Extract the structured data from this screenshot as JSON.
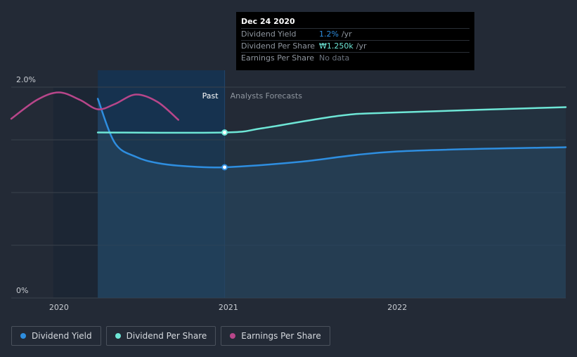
{
  "colors": {
    "background": "#232a36",
    "dividend_yield": "#2e8ee0",
    "dividend_per_share": "#6ee6d6",
    "earnings_per_share": "#b8468a",
    "past_region": "#16324f",
    "grid": "#3a414c",
    "axis_text": "#c9cdd3"
  },
  "region_labels": {
    "past": "Past",
    "forecast": "Analysts Forecasts"
  },
  "tooltip": {
    "date": "Dec 24 2020",
    "rows": [
      {
        "label": "Dividend Yield",
        "value": "1.2%",
        "unit": "/yr",
        "color": "#2e8ee0"
      },
      {
        "label": "Dividend Per Share",
        "value": "₩1.250k",
        "unit": "/yr",
        "color": "#6ee6d6"
      },
      {
        "label": "Earnings Per Share",
        "value": "No data",
        "unit": "",
        "color": "#6b737e"
      }
    ]
  },
  "legend": [
    {
      "label": "Dividend Yield",
      "color": "#2e8ee0"
    },
    {
      "label": "Dividend Per Share",
      "color": "#6ee6d6"
    },
    {
      "label": "Earnings Per Share",
      "color": "#b8468a"
    }
  ],
  "chart_data": {
    "type": "line",
    "title": "",
    "xlabel": "",
    "ylabel": "",
    "x_ticks": [
      "2020",
      "2021",
      "2022"
    ],
    "y_ticks": [
      "0%",
      "2.0%"
    ],
    "ylim": [
      0,
      2.0
    ],
    "xlim": [
      "2019-09-20",
      "2022-12-31"
    ],
    "past_forecast_split": "2020-12-24",
    "highlight_date": "2020-12-24",
    "grid": true,
    "legend_position": "bottom-left",
    "series": [
      {
        "name": "Dividend Yield",
        "points": [
          {
            "date": "2020-03-25",
            "value": 1.89
          },
          {
            "date": "2020-05-01",
            "value": 1.47
          },
          {
            "date": "2020-06-15",
            "value": 1.34
          },
          {
            "date": "2020-08-01",
            "value": 1.28
          },
          {
            "date": "2020-10-01",
            "value": 1.25
          },
          {
            "date": "2020-12-24",
            "value": 1.24
          },
          {
            "date": "2021-06-01",
            "value": 1.29
          },
          {
            "date": "2022-01-01",
            "value": 1.39
          },
          {
            "date": "2022-12-31",
            "value": 1.43
          }
        ]
      },
      {
        "name": "Dividend Per Share",
        "points": [
          {
            "date": "2020-03-25",
            "value": 1.57
          },
          {
            "date": "2020-12-24",
            "value": 1.57
          },
          {
            "date": "2021-03-15",
            "value": 1.61
          },
          {
            "date": "2021-09-01",
            "value": 1.73
          },
          {
            "date": "2022-01-01",
            "value": 1.76
          },
          {
            "date": "2022-12-31",
            "value": 1.81
          }
        ]
      },
      {
        "name": "Earnings Per Share",
        "points": [
          {
            "date": "2019-09-20",
            "value": 1.7
          },
          {
            "date": "2019-11-15",
            "value": 1.88
          },
          {
            "date": "2020-01-01",
            "value": 1.95
          },
          {
            "date": "2020-02-15",
            "value": 1.88
          },
          {
            "date": "2020-03-25",
            "value": 1.79
          },
          {
            "date": "2020-05-01",
            "value": 1.84
          },
          {
            "date": "2020-06-15",
            "value": 1.93
          },
          {
            "date": "2020-08-01",
            "value": 1.86
          },
          {
            "date": "2020-09-15",
            "value": 1.69
          }
        ]
      }
    ]
  }
}
